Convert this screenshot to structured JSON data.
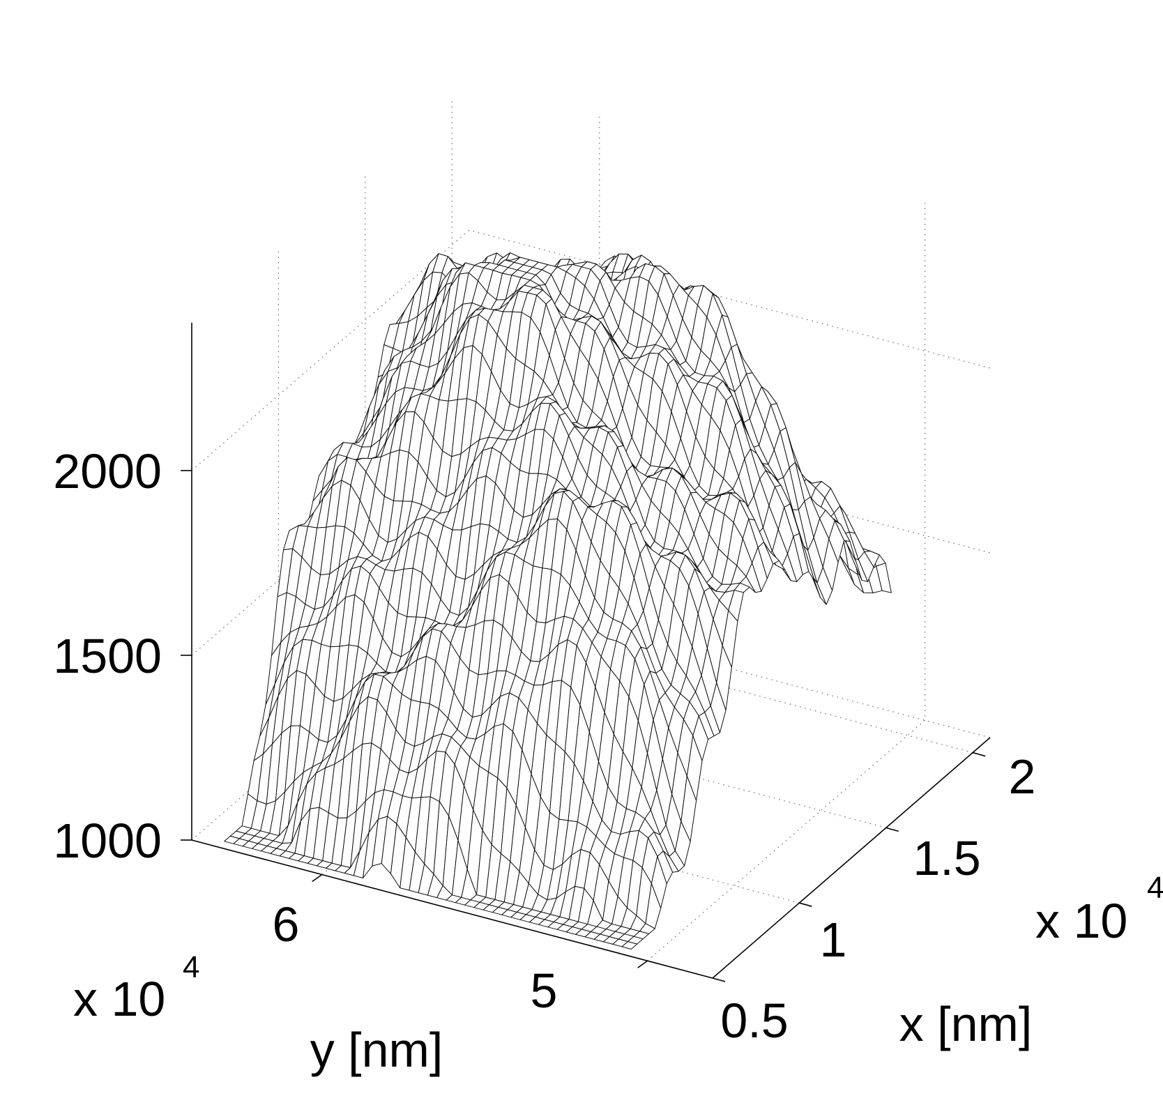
{
  "chart_data": {
    "type": "surface",
    "title": "",
    "xlabel": "x [nm]",
    "ylabel": "y [nm]",
    "zlabel": "",
    "x_multiplier": "x 10",
    "x_multiplier_exp": "4",
    "y_multiplier": "x 10",
    "y_multiplier_exp": "4",
    "xlim": [
      0.5,
      2.1
    ],
    "ylim": [
      4.8,
      6.4
    ],
    "zlim": [
      1000,
      2400
    ],
    "x_ticks": [
      {
        "value": 0.5,
        "label": "0.5"
      },
      {
        "value": 1.0,
        "label": "1"
      },
      {
        "value": 1.5,
        "label": "1.5"
      },
      {
        "value": 2.0,
        "label": "2"
      }
    ],
    "y_ticks": [
      {
        "value": 6,
        "label": "6"
      },
      {
        "value": 5,
        "label": "5"
      }
    ],
    "z_ticks": [
      {
        "value": 1000,
        "label": "1000"
      },
      {
        "value": 1500,
        "label": "1500"
      },
      {
        "value": 2000,
        "label": "2000"
      }
    ],
    "grid": true,
    "surface": {
      "style": "wireframe mesh",
      "description_points": [
        {
          "x": 0.5,
          "y": 6.25,
          "z": 1230
        },
        {
          "x": 0.5,
          "y": 5.1,
          "z": 1050
        },
        {
          "x": 1.3,
          "y": 6.1,
          "z": 2300
        },
        {
          "x": 1.5,
          "y": 5.5,
          "z": 2350
        },
        {
          "x": 2.0,
          "y": 5.5,
          "z": 1800
        }
      ]
    }
  }
}
